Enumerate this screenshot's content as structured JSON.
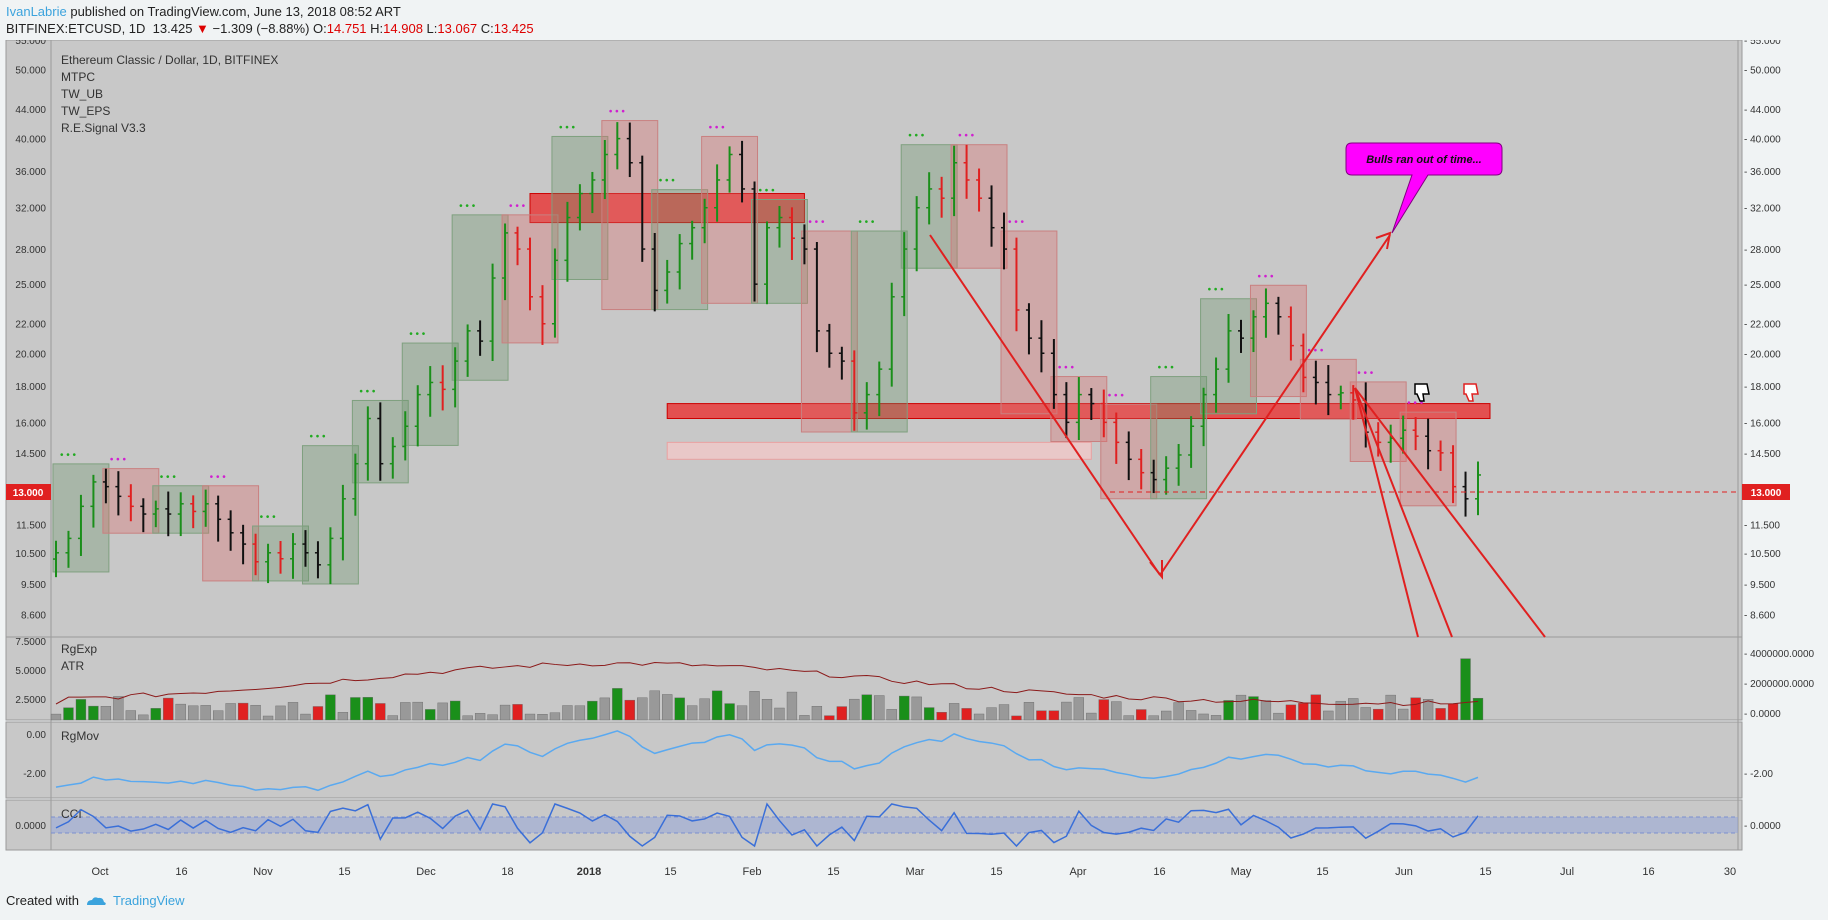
{
  "header": {
    "user": "IvanLabrie",
    "published": "published on TradingView.com, June 13, 2018 08:52 ART",
    "symbol": "BITFINEX:ETCUSD, 1D",
    "last": "13.425",
    "change": "−1.309 (−8.88%)",
    "o_label": "O:",
    "o": "14.751",
    "h_label": "H:",
    "h": "14.908",
    "l_label": "L:",
    "l": "13.067",
    "c_label": "C:",
    "c": "13.425"
  },
  "legend": [
    "Ethereum Classic / Dollar, 1D, BITFINEX",
    "MTPC",
    "TW_UB",
    "TW_EPS",
    "R.E.Signal V3.3"
  ],
  "callout": "Bulls ran out of time...",
  "price_badge": "13.000",
  "footer": {
    "created": "Created with",
    "brand": "TradingView"
  },
  "colors": {
    "up": "#1a8f1a",
    "down": "#e02020",
    "zone": "#e83b3b",
    "atr": "#8b1a1a",
    "rgmov": "#5aa9f0",
    "cci": "#3a6fd8",
    "callout": "#ff00ff",
    "panel": "#c8c8c8"
  },
  "chart_data": [
    {
      "type": "candlestick",
      "title": "Ethereum Classic / Dollar, 1D, BITFINEX",
      "scale": "log",
      "ylim": [
        8.0,
        55.0
      ],
      "right_ticks": [
        "55.000",
        "50.000",
        "44.000",
        "40.000",
        "36.000",
        "32.000",
        "28.000",
        "25.000",
        "22.000",
        "20.000",
        "18.000",
        "16.000",
        "14.500",
        "11.500",
        "10.500",
        "9.500",
        "8.600"
      ],
      "left_ticks": [
        "55.000",
        "50.000",
        "44.000",
        "40.000",
        "36.000",
        "32.000",
        "28.000",
        "25.000",
        "22.000",
        "20.000",
        "18.000",
        "16.000",
        "14.500",
        "13.000",
        "11.500",
        "10.500",
        "9.500",
        "8.600"
      ],
      "x_labels": [
        "Oct",
        "16",
        "Nov",
        "15",
        "Dec",
        "18",
        "2018",
        "15",
        "Feb",
        "15",
        "Mar",
        "15",
        "Apr",
        "16",
        "May",
        "15",
        "Jun",
        "15",
        "Jul",
        "16",
        "30"
      ],
      "close_path": [
        10.5,
        11.0,
        12.2,
        13.2,
        13.0,
        12.6,
        12.2,
        11.9,
        12.1,
        11.9,
        12.3,
        12.0,
        12.3,
        11.7,
        11.2,
        10.8,
        10.2,
        10.5,
        10.3,
        10.8,
        10.5,
        10.1,
        11.0,
        12.5,
        14.0,
        16.2,
        14.0,
        14.8,
        15.8,
        17.5,
        18.2,
        17.8,
        19.5,
        21.5,
        20.8,
        25.5,
        29.5,
        28.0,
        24.0,
        22.0,
        27.0,
        31.0,
        33.5,
        35.0,
        38.0,
        40.0,
        37.0,
        28.0,
        24.5,
        26.0,
        28.5,
        30.0,
        32.0,
        35.0,
        38.0,
        34.0,
        25.0,
        30.0,
        31.0,
        29.0,
        28.0,
        21.5,
        20.0,
        19.5,
        16.5,
        17.5,
        19.0,
        24.0,
        28.0,
        32.0,
        34.0,
        33.0,
        37.0,
        35.0,
        33.0,
        30.0,
        28.0,
        23.0,
        21.0,
        20.0,
        17.5,
        16.0,
        17.5,
        17.0,
        16.0,
        15.0,
        14.2,
        13.6,
        13.3,
        13.8,
        14.4,
        15.8,
        17.5,
        19.0,
        21.5,
        21.0,
        22.5,
        23.5,
        22.5,
        20.5,
        18.5,
        18.2,
        17.5,
        17.6,
        17.2,
        15.5,
        15.0,
        15.2,
        15.6,
        15.3,
        14.6,
        14.5,
        13.0,
        12.5,
        13.5
      ],
      "zones": [
        {
          "type": "resistance",
          "price_range": [
            30.5,
            33.5
          ],
          "span": [
            "Jan",
            "late Feb"
          ]
        },
        {
          "type": "resistance",
          "price_range": [
            16.2,
            17.0
          ],
          "span": [
            "Feb",
            "Jun 15"
          ]
        },
        {
          "type": "support-light",
          "price_range": [
            14.2,
            15.0
          ],
          "span": [
            "Feb",
            "May"
          ]
        }
      ],
      "horizontal_line": 13.0,
      "annotations": [
        "Bulls ran out of time..."
      ]
    },
    {
      "type": "bar",
      "title": "",
      "series": [
        {
          "name": "RgExp"
        },
        {
          "name": "ATR"
        }
      ],
      "left_ticks": [
        "7.5000",
        "5.0000",
        "2.5000"
      ],
      "right_ticks": [
        "4000000.0000",
        "2000000.0000",
        "0.0000"
      ]
    },
    {
      "type": "line",
      "title": "",
      "series": [
        {
          "name": "RgMov"
        }
      ],
      "left_ticks": [
        "0.00",
        "-2.00"
      ],
      "right_ticks": [
        "-2.00"
      ]
    },
    {
      "type": "line",
      "title": "",
      "series": [
        {
          "name": "CCI"
        }
      ],
      "left_ticks": [
        "0.0000"
      ],
      "right_ticks": [
        "0.0000"
      ]
    }
  ]
}
